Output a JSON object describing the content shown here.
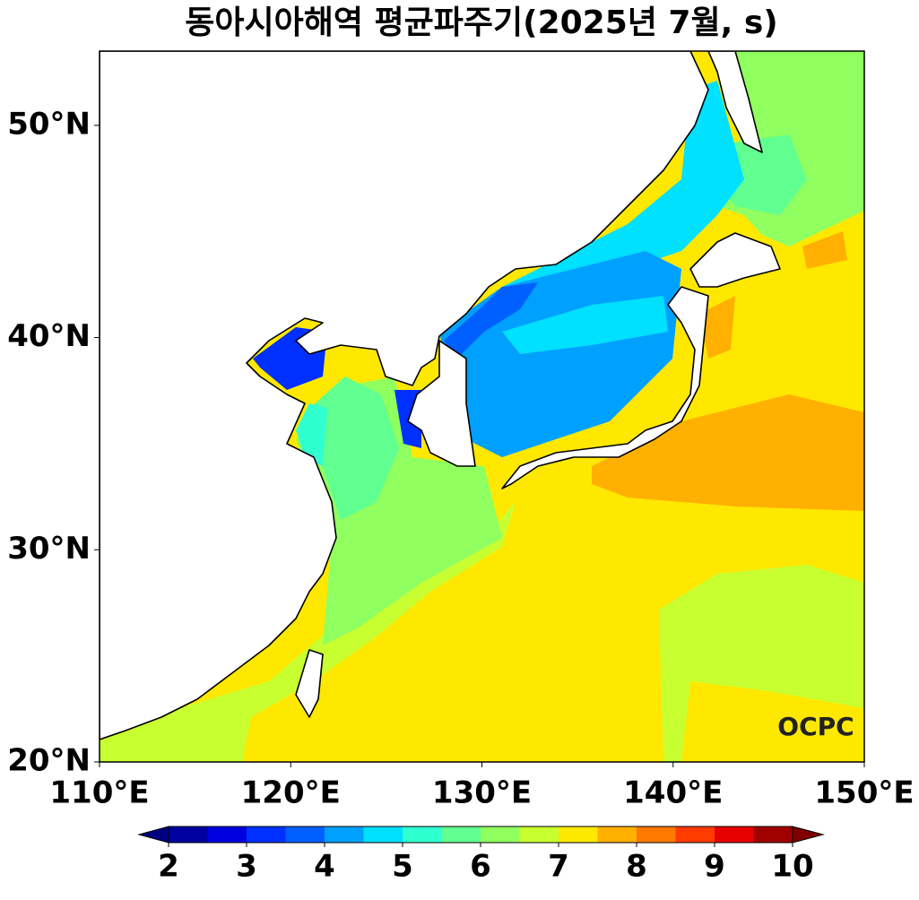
{
  "title": "동아시아해역 평균파주기(2025년 7월, s)",
  "map": {
    "lon_range": [
      110,
      150
    ],
    "lat_range": [
      20,
      53.5
    ],
    "lon_ticks": [
      {
        "value": 110,
        "label": "110°E"
      },
      {
        "value": 120,
        "label": "120°E"
      },
      {
        "value": 130,
        "label": "130°E"
      },
      {
        "value": 140,
        "label": "140°E"
      },
      {
        "value": 150,
        "label": "150°E"
      }
    ],
    "lat_ticks": [
      {
        "value": 20,
        "label": "20°N"
      },
      {
        "value": 30,
        "label": "30°N"
      },
      {
        "value": 40,
        "label": "40°N"
      },
      {
        "value": 50,
        "label": "50°N"
      }
    ]
  },
  "colorbar": {
    "range": [
      2,
      10
    ],
    "ticks": [
      2,
      3,
      4,
      5,
      6,
      7,
      8,
      9,
      10
    ],
    "levels": [
      2,
      2.5,
      3,
      3.5,
      4,
      4.5,
      5,
      5.5,
      6,
      6.5,
      7,
      7.5,
      8,
      8.5,
      9,
      9.5,
      10
    ],
    "colors": [
      "#0000a0",
      "#0000e0",
      "#0030ff",
      "#0060ff",
      "#00a0ff",
      "#00e0ff",
      "#30ffd0",
      "#60ff90",
      "#90ff60",
      "#c8ff30",
      "#ffe800",
      "#ffb000",
      "#ff7800",
      "#ff3c00",
      "#e80000",
      "#a00000"
    ],
    "under_color": "#000080",
    "over_color": "#800000"
  },
  "logo": "OCPC"
}
